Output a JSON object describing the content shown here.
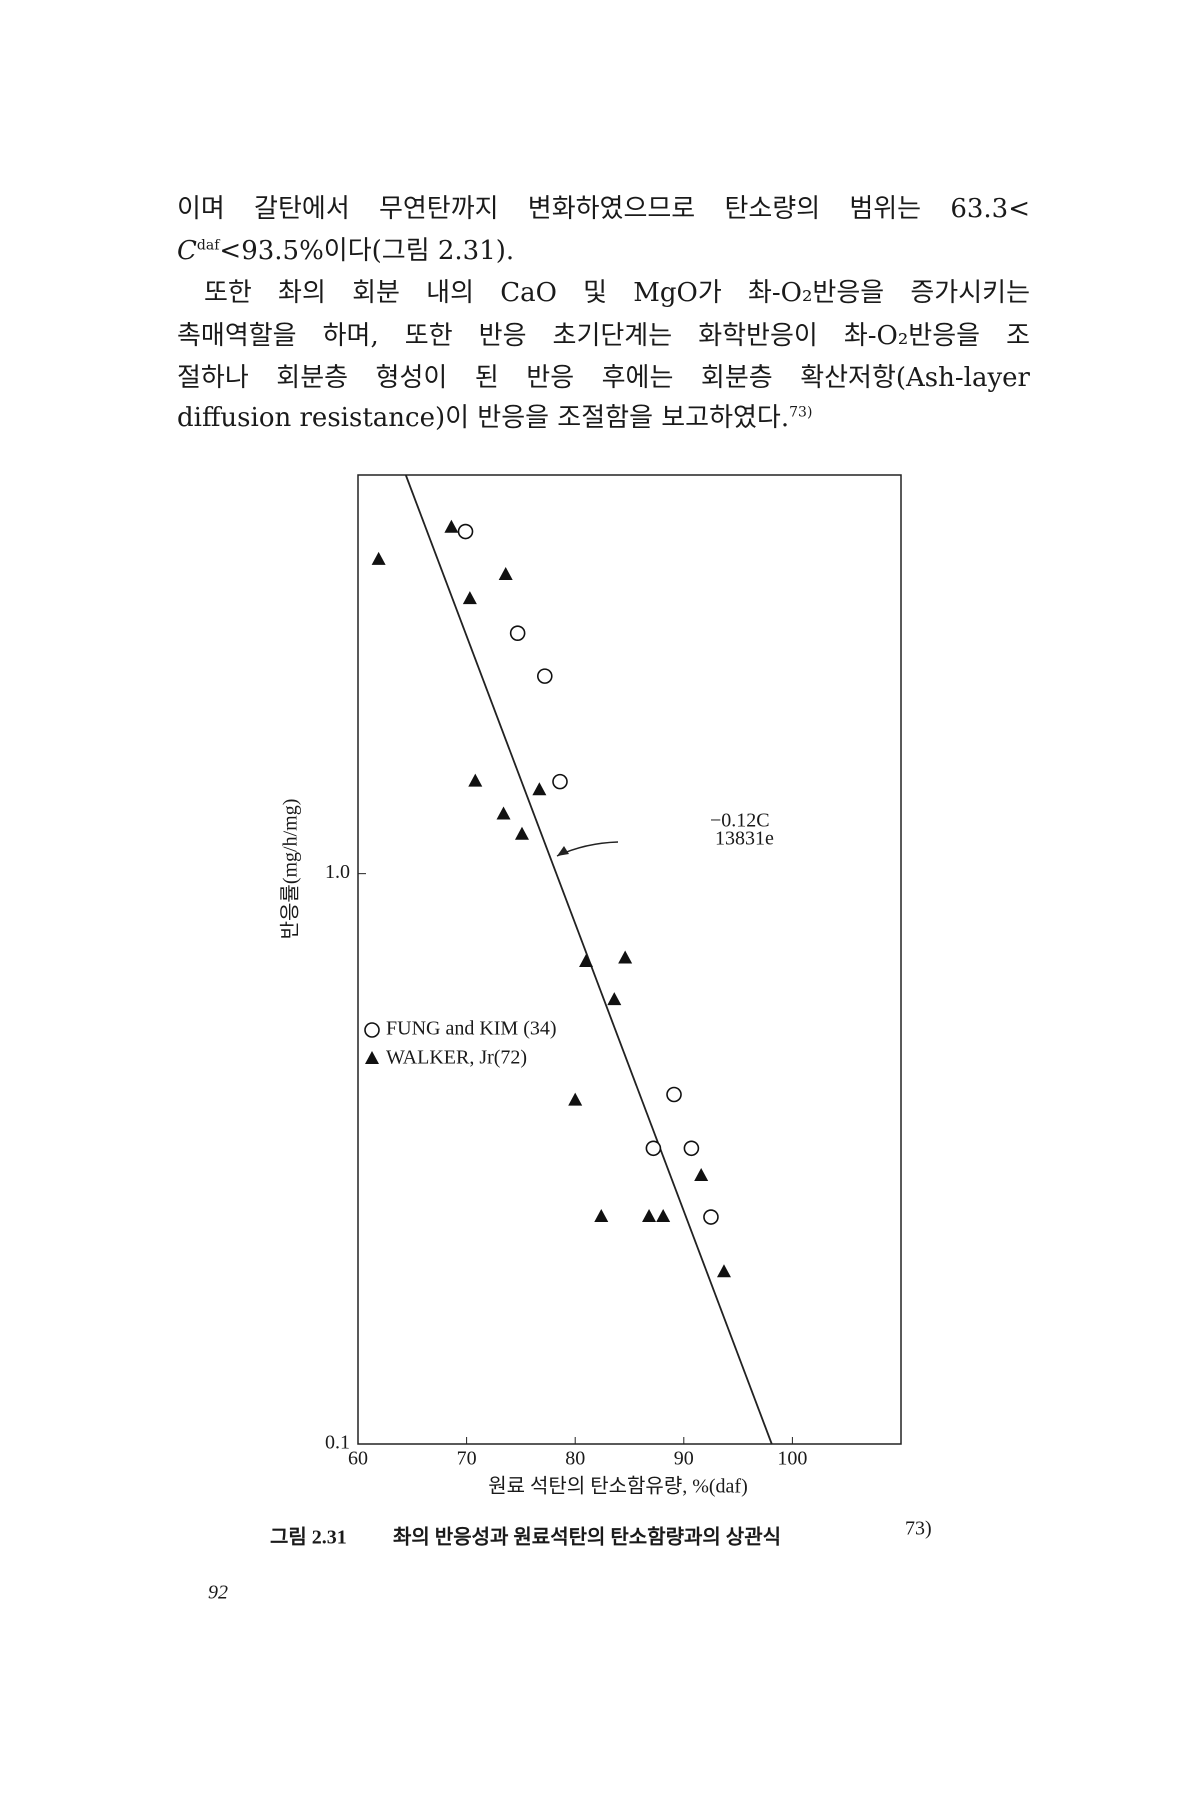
{
  "body": {
    "para1": [
      [
        "이며 갈탄에서 무연탄까지 변화하였으므로 탄소량의 범위는 63.3<"
      ],
      [
        "C",
        "daf",
        "<93.5%이다(그림 2.31)."
      ]
    ],
    "para2": [
      [
        "또한 촤의 회분 내의 CaO 및 MgO가 촤-O₂반응을 증가시키는"
      ],
      [
        "촉매역할을 하며, 또한 반응 초기단계는 화학반응이 촤-O₂반응을 조"
      ],
      [
        "절하나 회분층 형성이 된 반응 후에는 회분층 확산저항(Ash-layer"
      ],
      [
        "diffusion resistance)이 반응을 조절함을 보고하였다.",
        "73)"
      ]
    ]
  },
  "chart_data": {
    "type": "scatter",
    "xlabel": "원료 석탄의 탄소함유량, %(daf)",
    "ylabel": "반응률(mg/h/mg)",
    "xlim": [
      60,
      110
    ],
    "ylim": [
      0.1,
      5
    ],
    "xticks": [
      60,
      70,
      80,
      90,
      100
    ],
    "yticks": [
      0.1,
      {
        "value": 1,
        "label": "1.0"
      }
    ],
    "yscale": "log",
    "series": [
      {
        "name": "FUNG and KIM (34)",
        "marker": "circle",
        "color": "#111111",
        "x": [
          69.9,
          74.7,
          77.2,
          78.6,
          89.1,
          87.2,
          90.7,
          92.5
        ],
        "values": [
          3.98,
          2.64,
          2.22,
          1.45,
          0.41,
          0.33,
          0.33,
          0.25
        ]
      },
      {
        "name": "WALKER, Jr(72)",
        "marker": "triangle",
        "color": "#111111",
        "x": [
          61.9,
          68.6,
          73.6,
          70.3,
          70.8,
          76.7,
          73.4,
          75.1,
          81.0,
          84.6,
          83.6,
          80.0,
          91.6,
          82.4,
          86.8,
          88.1,
          93.7
        ],
        "values": [
          3.55,
          4.04,
          3.34,
          3.03,
          1.45,
          1.4,
          1.27,
          1.17,
          0.7,
          0.71,
          0.6,
          0.4,
          0.295,
          0.25,
          0.25,
          0.25,
          0.2
        ]
      }
    ],
    "fit_line": {
      "x": [
        64.4,
        98.1
      ],
      "values": [
        5,
        0.1
      ]
    },
    "annotation": {
      "text": "13831e",
      "exponent": "−0.12C"
    }
  },
  "caption": {
    "label": "그림 2.31",
    "text": "촤의 반응성과 원료석탄의 탄소함량과의 상관식",
    "ref": "73)"
  },
  "page_number": "92"
}
